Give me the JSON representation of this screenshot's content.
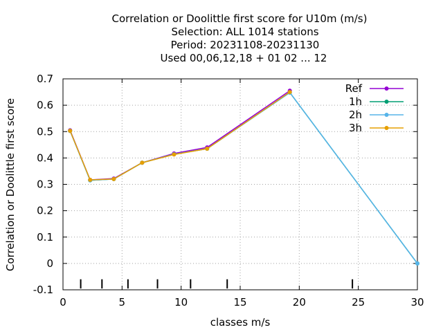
{
  "chart_data": {
    "type": "line",
    "title_lines": [
      "Correlation or Doolittle first score  for U10m (m/s)",
      "Selection: ALL   1014 stations",
      "Period: 20231108-20231130",
      "Used  00,06,12,18 + 01 02 ... 12"
    ],
    "xlabel": "classes m/s",
    "ylabel": "Correlation or Doolittle first score",
    "xlim": [
      0,
      30
    ],
    "ylim": [
      -0.1,
      0.7
    ],
    "x_ticks": [
      0,
      5,
      10,
      15,
      20,
      25,
      30
    ],
    "y_ticks": [
      -0.1,
      0,
      0.1,
      0.2,
      0.3,
      0.4,
      0.5,
      0.6,
      0.7
    ],
    "grid": true,
    "legend_position": "top-right",
    "class_marks": [
      1.5,
      3.3,
      5.5,
      8.0,
      10.8,
      13.9,
      24.5
    ],
    "series": [
      {
        "name": "Ref",
        "color": "#9400d3",
        "x": [
          0.6,
          2.3,
          4.3,
          6.7,
          9.4,
          12.2,
          19.2
        ],
        "y": [
          0.505,
          0.317,
          0.322,
          0.382,
          0.417,
          0.44,
          0.655
        ]
      },
      {
        "name": "1h",
        "color": "#009e73",
        "x": [
          0.6,
          2.3,
          4.3,
          6.7,
          9.4,
          12.2,
          19.2,
          30.0
        ],
        "y": [
          0.503,
          0.315,
          0.32,
          0.382,
          0.414,
          0.435,
          0.648,
          0.0
        ]
      },
      {
        "name": "2h",
        "color": "#56b4e9",
        "x": [
          0.6,
          2.3,
          4.3,
          6.7,
          9.4,
          12.2,
          19.2,
          30.0
        ],
        "y": [
          0.502,
          0.315,
          0.32,
          0.382,
          0.414,
          0.435,
          0.648,
          0.0
        ]
      },
      {
        "name": "3h",
        "color": "#e69f00",
        "x": [
          0.6,
          2.3,
          4.3,
          6.7,
          9.4,
          12.2,
          19.2
        ],
        "y": [
          0.503,
          0.317,
          0.32,
          0.382,
          0.413,
          0.435,
          0.65
        ]
      }
    ]
  }
}
